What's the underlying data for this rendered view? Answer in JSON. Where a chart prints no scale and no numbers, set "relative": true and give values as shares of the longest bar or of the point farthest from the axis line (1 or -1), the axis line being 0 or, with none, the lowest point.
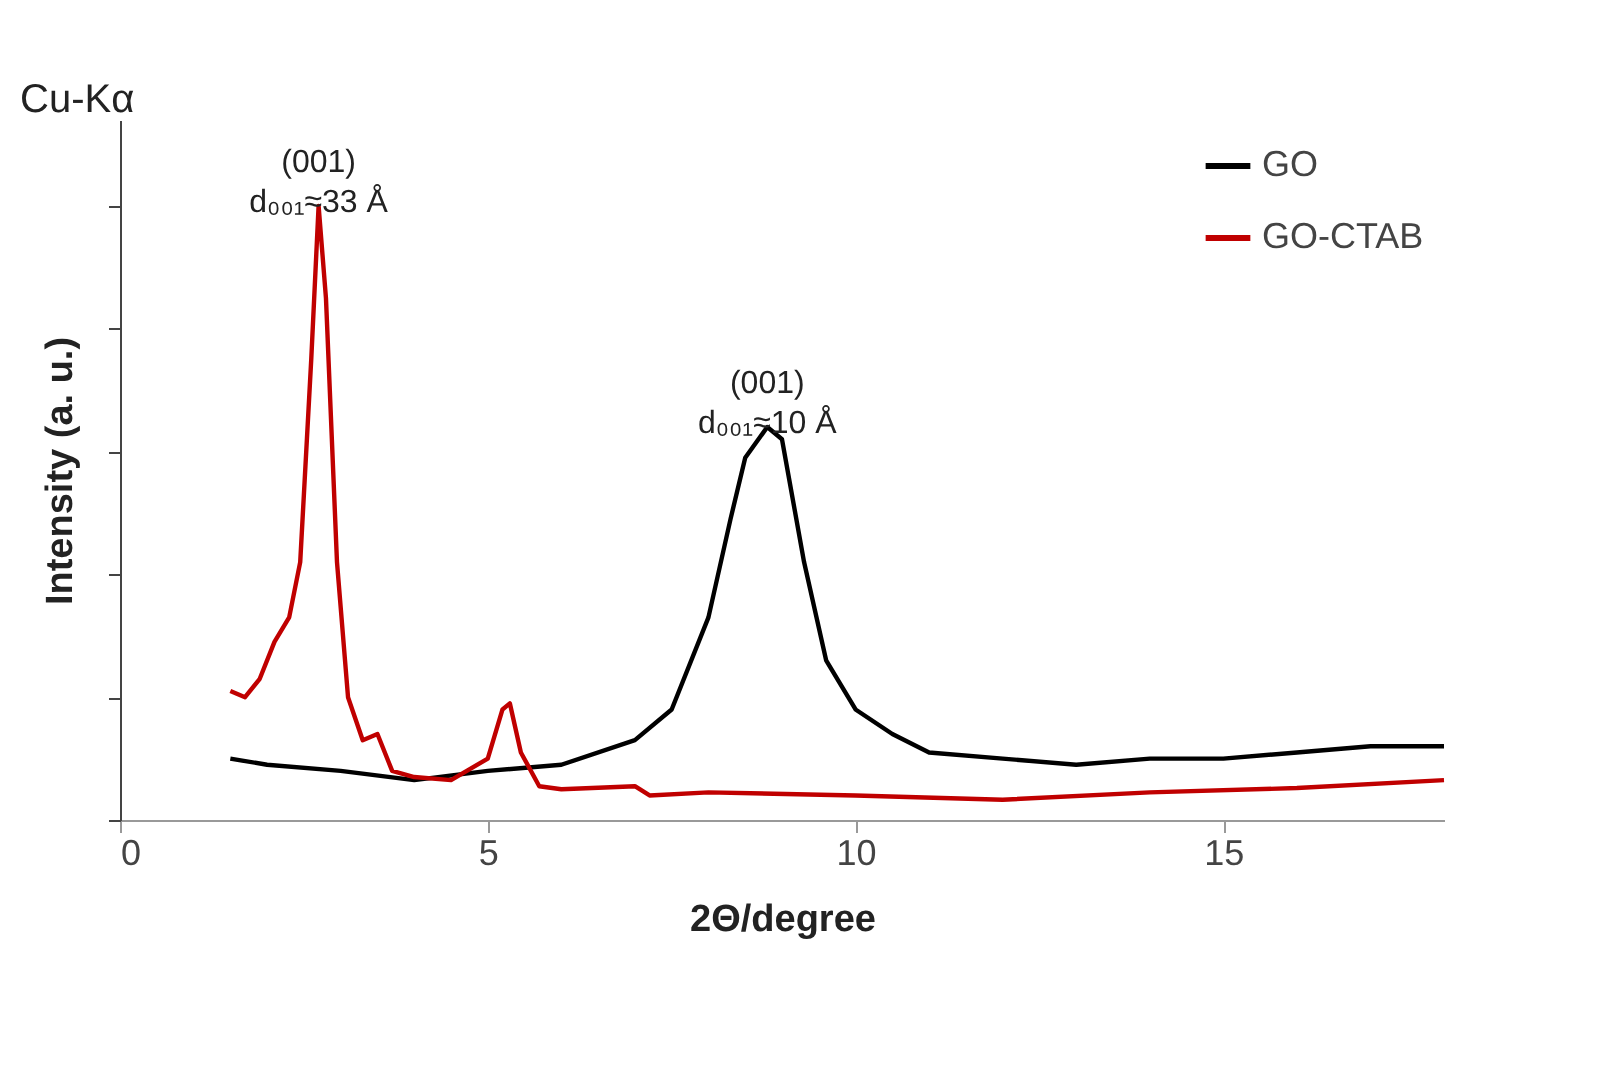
{
  "chart_data": {
    "type": "line",
    "relative": true,
    "xlabel": "2Θ/degree",
    "ylabel": "Intensity (a. u.)",
    "xlim": [
      0,
      18
    ],
    "xticks": [
      0,
      5,
      10,
      15
    ],
    "grid": false,
    "legend": "top right",
    "marker": "none",
    "line_style": "solid",
    "annotations": [
      "Cu-Kα",
      {
        "text": "(001)\nd₀₀₁≈33 Å",
        "x": 2.7,
        "y": 1.0
      },
      {
        "text": "(001)\nd₀₀₁≈10 Å",
        "x": 8.8,
        "y": 0.64
      }
    ],
    "series": [
      {
        "name": "GO",
        "color": "#000000",
        "x": [
          1.5,
          2,
          3,
          4,
          5,
          6,
          7,
          7.5,
          8,
          8.3,
          8.5,
          8.8,
          9.0,
          9.3,
          9.6,
          10,
          10.5,
          11,
          12,
          13,
          14,
          15,
          16,
          17,
          18
        ],
        "values": [
          0.1,
          0.09,
          0.08,
          0.065,
          0.08,
          0.09,
          0.13,
          0.18,
          0.33,
          0.49,
          0.59,
          0.64,
          0.62,
          0.42,
          0.26,
          0.18,
          0.14,
          0.11,
          0.1,
          0.09,
          0.1,
          0.1,
          0.11,
          0.12,
          0.12
        ]
      },
      {
        "name": "GO-CTAB",
        "color": "#c00000",
        "x": [
          1.5,
          1.7,
          1.9,
          2.1,
          2.3,
          2.45,
          2.6,
          2.7,
          2.8,
          2.95,
          3.1,
          3.3,
          3.5,
          3.7,
          4.0,
          4.5,
          5.0,
          5.2,
          5.3,
          5.45,
          5.7,
          6.0,
          7.0,
          7.2,
          8,
          10,
          12,
          14,
          16,
          18
        ],
        "values": [
          0.21,
          0.2,
          0.23,
          0.29,
          0.33,
          0.42,
          0.75,
          1.0,
          0.85,
          0.42,
          0.2,
          0.13,
          0.14,
          0.08,
          0.07,
          0.065,
          0.1,
          0.18,
          0.19,
          0.11,
          0.055,
          0.05,
          0.055,
          0.04,
          0.045,
          0.04,
          0.033,
          0.045,
          0.052,
          0.065
        ]
      }
    ]
  }
}
